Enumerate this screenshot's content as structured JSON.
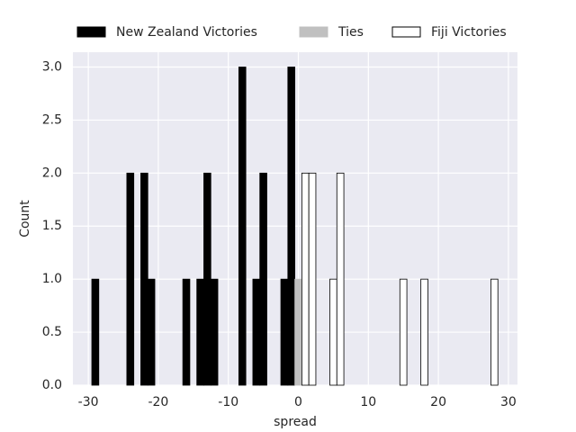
{
  "chart_data": {
    "type": "histogram",
    "xlabel": "spread",
    "ylabel": "Count",
    "xlim": [
      -32.2,
      31.3
    ],
    "ylim": [
      0,
      3.14
    ],
    "xticks": [
      -30,
      -20,
      -10,
      0,
      10,
      20,
      30
    ],
    "yticks": [
      {
        "value": 0,
        "label": "0.0"
      },
      {
        "value": 0.5,
        "label": "0.5"
      },
      {
        "value": 1,
        "label": "1.0"
      },
      {
        "value": 1.5,
        "label": "1.5"
      },
      {
        "value": 2,
        "label": "2.0"
      },
      {
        "value": 2.5,
        "label": "2.5"
      },
      {
        "value": 3,
        "label": "3.0"
      }
    ],
    "grid": true,
    "legend": "top",
    "series": [
      {
        "name": "New Zealand Victories",
        "color": "#000000",
        "edgecolor": "#000000",
        "bins": [
          -29.5,
          -28.5,
          -27.5,
          -26.5,
          -25.5,
          -24.5,
          -23.5,
          -22.5,
          -21.5,
          -20.5,
          -19.5,
          -18.5,
          -17.5,
          -16.5,
          -15.5,
          -14.5,
          -13.5,
          -12.5,
          -11.5,
          -10.5,
          -9.5,
          -8.5,
          -7.5,
          -6.5,
          -5.5,
          -4.5,
          -3.5,
          -2.5,
          -1.5,
          -0.5
        ],
        "values": [
          1,
          0,
          0,
          0,
          0,
          2,
          0,
          2,
          1,
          0,
          0,
          0,
          0,
          1,
          0,
          1,
          2,
          1,
          0,
          0,
          0,
          3,
          0,
          1,
          2,
          0,
          0,
          1,
          3
        ]
      },
      {
        "name": "Ties",
        "color": "#c0c0c0",
        "edgecolor": "#c0c0c0",
        "bins": [
          -0.5,
          0.5
        ],
        "values": [
          1
        ]
      },
      {
        "name": "Fiji Victories",
        "color": "#ffffff",
        "edgecolor": "#000000",
        "bins": [
          0.5,
          1.5,
          2.5,
          3.5,
          4.5,
          5.5,
          6.5,
          7.5,
          8.5,
          9.5,
          10.5,
          11.5,
          12.5,
          13.5,
          14.5,
          15.5,
          16.5,
          17.5,
          18.5,
          19.5,
          20.5,
          21.5,
          22.5,
          23.5,
          24.5,
          25.5,
          26.5,
          27.5,
          28.5
        ],
        "values": [
          2,
          2,
          0,
          0,
          1,
          2,
          0,
          0,
          0,
          0,
          0,
          0,
          0,
          0,
          1,
          0,
          0,
          1,
          0,
          0,
          0,
          0,
          0,
          0,
          0,
          0,
          0,
          1
        ]
      }
    ]
  }
}
